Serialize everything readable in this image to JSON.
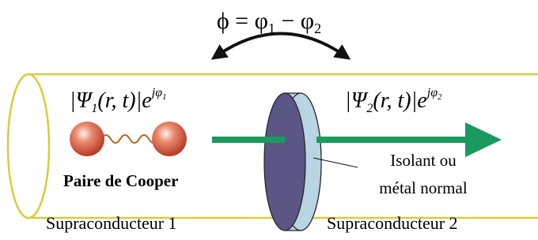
{
  "phase_relation": {
    "lhs": "ϕ = φ",
    "sub_1": "1",
    "minus": " − φ",
    "sub_2": "2"
  },
  "wavefunction_1": {
    "body": "|Ψ",
    "sub": "1",
    "args": "(r, t)|e",
    "exp": "jφ",
    "exp_sub": "1"
  },
  "wavefunction_2": {
    "body": "|Ψ",
    "sub": "2",
    "args": "(r, t)|e",
    "exp": "jφ",
    "exp_sub": "2"
  },
  "cooper_pair_label": "Paire de Cooper",
  "barrier_label": [
    "Isolant ou",
    "métal normal"
  ],
  "superconductor_labels": [
    "Supraconducteur 1",
    "Supraconducteur 2"
  ]
}
